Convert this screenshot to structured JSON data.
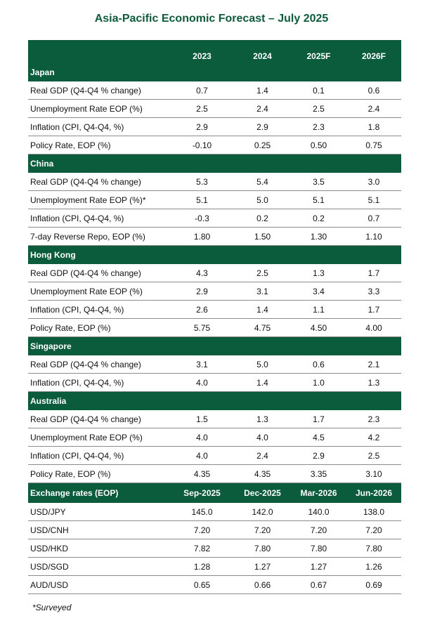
{
  "title": "Asia-Pacific Economic Forecast – July 2025",
  "header": [
    "",
    "2023",
    "2024",
    "2025F",
    "2026F"
  ],
  "sections": [
    {
      "name": "Japan",
      "rows": [
        [
          "Real GDP (Q4-Q4 % change)",
          "0.7",
          "1.4",
          "0.1",
          "0.6"
        ],
        [
          "Unemployment Rate EOP (%)",
          "2.5",
          "2.4",
          "2.5",
          "2.4"
        ],
        [
          "Inflation (CPI, Q4-Q4, %)",
          "2.9",
          "2.9",
          "2.3",
          "1.8"
        ],
        [
          "Policy Rate, EOP (%)",
          "-0.10",
          "0.25",
          "0.50",
          "0.75"
        ]
      ]
    },
    {
      "name": "China",
      "rows": [
        [
          "Real GDP (Q4-Q4 % change)",
          "5.3",
          "5.4",
          "3.5",
          "3.0"
        ],
        [
          "Unemployment Rate EOP (%)*",
          "5.1",
          "5.0",
          "5.1",
          "5.1"
        ],
        [
          "Inflation (CPI, Q4-Q4, %)",
          "-0.3",
          "0.2",
          "0.2",
          "0.7"
        ],
        [
          "7-day Reverse Repo, EOP (%)",
          "1.80",
          "1.50",
          "1.30",
          "1.10"
        ]
      ]
    },
    {
      "name": "Hong Kong",
      "rows": [
        [
          "Real GDP (Q4-Q4 % change)",
          "4.3",
          "2.5",
          "1.3",
          "1.7"
        ],
        [
          "Unemployment Rate EOP (%)",
          "2.9",
          "3.1",
          "3.4",
          "3.3"
        ],
        [
          "Inflation (CPI, Q4-Q4, %)",
          "2.6",
          "1.4",
          "1.1",
          "1.7"
        ],
        [
          "Policy Rate, EOP (%)",
          "5.75",
          "4.75",
          "4.50",
          "4.00"
        ]
      ]
    },
    {
      "name": "Singapore",
      "rows": [
        [
          "Real GDP (Q4-Q4 % change)",
          "3.1",
          "5.0",
          "0.6",
          "2.1"
        ],
        [
          "Inflation (CPI, Q4-Q4, %)",
          "4.0",
          "1.4",
          "1.0",
          "1.3"
        ]
      ]
    },
    {
      "name": "Australia",
      "rows": [
        [
          "Real GDP (Q4-Q4 % change)",
          "1.5",
          "1.3",
          "1.7",
          "2.3"
        ],
        [
          "Unemployment Rate EOP (%)",
          "4.0",
          "4.0",
          "4.5",
          "4.2"
        ],
        [
          "Inflation (CPI, Q4-Q4, %)",
          "4.0",
          "2.4",
          "2.9",
          "2.5"
        ],
        [
          "Policy Rate, EOP (%)",
          "4.35",
          "4.35",
          "3.35",
          "3.10"
        ]
      ]
    }
  ],
  "fx": {
    "header": [
      "Exchange rates (EOP)",
      "Sep-2025",
      "Dec-2025",
      "Mar-2026",
      "Jun-2026"
    ],
    "rows": [
      [
        "USD/JPY",
        "145.0",
        "142.0",
        "140.0",
        "138.0"
      ],
      [
        "USD/CNH",
        "7.20",
        "7.20",
        "7.20",
        "7.20"
      ],
      [
        "USD/HKD",
        "7.82",
        "7.80",
        "7.80",
        "7.80"
      ],
      [
        "USD/SGD",
        "1.28",
        "1.27",
        "1.27",
        "1.26"
      ],
      [
        "AUD/USD",
        "0.65",
        "0.66",
        "0.67",
        "0.69"
      ]
    ]
  },
  "footnote": "*Surveyed",
  "colors": {
    "header_bg": "#0b5b3d",
    "title": "#0f5a3a"
  }
}
